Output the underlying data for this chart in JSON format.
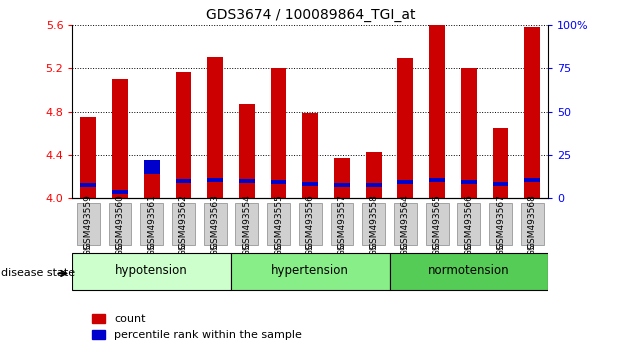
{
  "title": "GDS3674 / 100089864_TGI_at",
  "samples": [
    "GSM493559",
    "GSM493560",
    "GSM493561",
    "GSM493562",
    "GSM493563",
    "GSM493554",
    "GSM493555",
    "GSM493556",
    "GSM493557",
    "GSM493558",
    "GSM493564",
    "GSM493565",
    "GSM493566",
    "GSM493567",
    "GSM493568"
  ],
  "red_values": [
    4.75,
    5.1,
    4.22,
    5.16,
    5.3,
    4.87,
    5.2,
    4.79,
    4.37,
    4.43,
    5.29,
    5.6,
    5.2,
    4.65,
    5.58
  ],
  "blue_bottoms": [
    4.1,
    4.04,
    4.22,
    4.14,
    4.15,
    4.14,
    4.13,
    4.11,
    4.1,
    4.1,
    4.13,
    4.15,
    4.13,
    4.11,
    4.15
  ],
  "blue_heights": [
    0.04,
    0.04,
    0.13,
    0.04,
    0.04,
    0.04,
    0.04,
    0.04,
    0.04,
    0.04,
    0.04,
    0.04,
    0.04,
    0.04,
    0.04
  ],
  "ylim": [
    4.0,
    5.6
  ],
  "yticks_left": [
    4.0,
    4.4,
    4.8,
    5.2,
    5.6
  ],
  "yticks_right": [
    0,
    25,
    50,
    75,
    100
  ],
  "group_labels": [
    "hypotension",
    "hypertension",
    "normotension"
  ],
  "group_starts": [
    0,
    5,
    10
  ],
  "group_ends": [
    4,
    9,
    14
  ],
  "group_colors": [
    "#ccffcc",
    "#88ee88",
    "#55cc55"
  ],
  "bar_color": "#cc0000",
  "blue_color": "#0000cc",
  "bar_width": 0.5,
  "background_color": "#ffffff",
  "disease_state_label": "disease state",
  "legend_count": "count",
  "legend_percentile": "percentile rank within the sample"
}
